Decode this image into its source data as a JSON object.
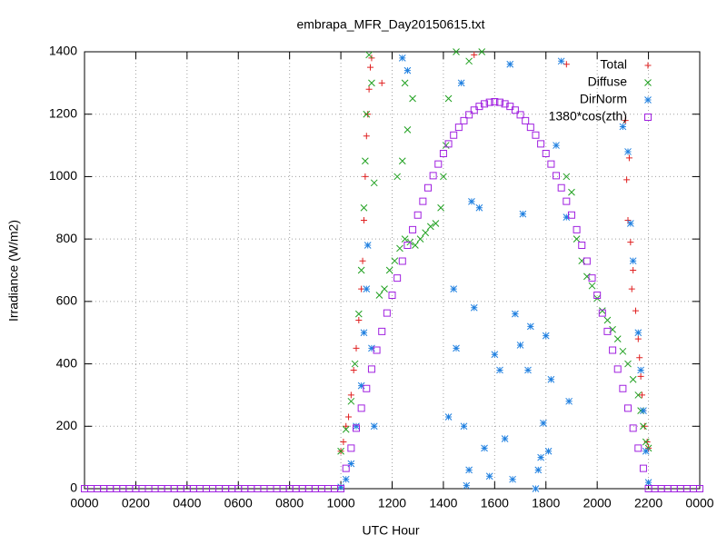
{
  "chart_data": {
    "type": "scatter",
    "title": "embrapa_MFR_Day20150615.txt",
    "x_label": "UTC Hour",
    "y_label": "Irradiance (W/m2)",
    "xlim": [
      0,
      2400
    ],
    "ylim": [
      0,
      1400
    ],
    "xticks": [
      {
        "value": 0,
        "label": "0000"
      },
      {
        "value": 200,
        "label": "0200"
      },
      {
        "value": 400,
        "label": "0400"
      },
      {
        "value": 600,
        "label": "0600"
      },
      {
        "value": 800,
        "label": "0800"
      },
      1000,
      1200,
      1400,
      1600,
      1800,
      2000,
      2200,
      {
        "value": 2400,
        "label": "0000"
      }
    ],
    "yticks": [
      0,
      200,
      400,
      600,
      800,
      1000,
      1200,
      1400
    ],
    "grid": true,
    "legend": "top-right",
    "series": [
      {
        "name": "Total",
        "color": "#e02020",
        "marker": "plus",
        "x": [
          1000,
          1010,
          1020,
          1030,
          1040,
          1050,
          1060,
          1070,
          1080,
          1085,
          1090,
          1095,
          1100,
          1105,
          1110,
          1115,
          1120,
          1160,
          1520,
          1880,
          2110,
          2115,
          2120,
          2125,
          2130,
          2135,
          2140,
          2150,
          2160,
          2165,
          2170,
          2175,
          2180,
          2185,
          2195,
          2200
        ],
        "values": [
          120,
          150,
          200,
          230,
          300,
          380,
          450,
          540,
          640,
          730,
          860,
          1000,
          1130,
          1200,
          1280,
          1350,
          1380,
          1300,
          1390,
          1360,
          1180,
          990,
          860,
          1060,
          790,
          640,
          700,
          570,
          480,
          420,
          360,
          300,
          250,
          200,
          150,
          130
        ]
      },
      {
        "name": "Diffuse",
        "color": "#20a020",
        "marker": "cross",
        "x": [
          1000,
          1020,
          1040,
          1055,
          1070,
          1080,
          1090,
          1095,
          1100,
          1110,
          1120,
          1130,
          1150,
          1170,
          1190,
          1210,
          1230,
          1250,
          1270,
          1290,
          1310,
          1330,
          1350,
          1370,
          1390,
          1400,
          1410,
          1420,
          1250,
          1280,
          1240,
          1260,
          1220,
          1450,
          1550,
          1500,
          1880,
          1900,
          1920,
          1940,
          1960,
          1980,
          2000,
          2020,
          2040,
          2060,
          2080,
          2100,
          2120,
          2140,
          2160,
          2170,
          2180,
          2190,
          2200
        ],
        "values": [
          120,
          190,
          280,
          400,
          560,
          700,
          900,
          1050,
          1200,
          1390,
          1300,
          980,
          620,
          640,
          700,
          730,
          770,
          800,
          790,
          780,
          800,
          820,
          840,
          850,
          900,
          1000,
          1100,
          1250,
          1300,
          1250,
          1050,
          1150,
          1000,
          1400,
          1400,
          1370,
          1000,
          950,
          800,
          730,
          680,
          650,
          610,
          570,
          540,
          510,
          480,
          440,
          400,
          350,
          300,
          250,
          200,
          150,
          130
        ]
      },
      {
        "name": "DirNorm",
        "color": "#2080e0",
        "marker": "star",
        "x": [
          1000,
          1020,
          1040,
          1060,
          1080,
          1090,
          1100,
          1105,
          1120,
          1130,
          1240,
          1260,
          1420,
          1440,
          1450,
          1470,
          1480,
          1490,
          1500,
          1510,
          1520,
          1540,
          1560,
          1580,
          1600,
          1620,
          1640,
          1660,
          1670,
          1680,
          1700,
          1710,
          1730,
          1740,
          1760,
          1770,
          1780,
          1790,
          1800,
          1810,
          1820,
          1840,
          1860,
          1880,
          1890,
          2100,
          2120,
          2130,
          2140,
          2160,
          2170,
          2180,
          2190,
          2200
        ],
        "values": [
          5,
          30,
          80,
          200,
          330,
          500,
          640,
          780,
          450,
          200,
          1380,
          1340,
          230,
          640,
          450,
          1300,
          200,
          10,
          60,
          920,
          580,
          900,
          130,
          40,
          430,
          380,
          160,
          1360,
          30,
          560,
          460,
          880,
          380,
          520,
          0,
          60,
          100,
          210,
          490,
          120,
          350,
          1100,
          1370,
          870,
          280,
          1160,
          1080,
          850,
          730,
          500,
          380,
          250,
          120,
          20
        ]
      },
      {
        "name": "1380*cos(zth)",
        "color": "#a020e0",
        "marker": "square",
        "x": [
          0,
          25,
          50,
          75,
          100,
          125,
          150,
          175,
          200,
          225,
          250,
          275,
          300,
          325,
          350,
          375,
          400,
          425,
          450,
          475,
          500,
          525,
          550,
          575,
          600,
          625,
          650,
          675,
          700,
          725,
          750,
          775,
          800,
          825,
          850,
          875,
          900,
          925,
          950,
          975,
          1000,
          1020,
          1040,
          1060,
          1080,
          1100,
          1120,
          1140,
          1160,
          1180,
          1200,
          1220,
          1240,
          1260,
          1280,
          1300,
          1320,
          1340,
          1360,
          1380,
          1400,
          1420,
          1440,
          1460,
          1480,
          1500,
          1520,
          1540,
          1560,
          1580,
          1600,
          1620,
          1640,
          1660,
          1680,
          1700,
          1720,
          1740,
          1760,
          1780,
          1800,
          1820,
          1840,
          1860,
          1880,
          1900,
          1920,
          1940,
          1960,
          1980,
          2000,
          2020,
          2040,
          2060,
          2080,
          2100,
          2120,
          2140,
          2160,
          2180,
          2200,
          2225,
          2250,
          2275,
          2300,
          2325,
          2350,
          2375,
          2400
        ],
        "values": [
          0,
          0,
          0,
          0,
          0,
          0,
          0,
          0,
          0,
          0,
          0,
          0,
          0,
          0,
          0,
          0,
          0,
          0,
          0,
          0,
          0,
          0,
          0,
          0,
          0,
          0,
          0,
          0,
          0,
          0,
          0,
          0,
          0,
          0,
          0,
          0,
          0,
          0,
          0,
          0,
          0,
          65,
          130,
          194,
          258,
          321,
          383,
          444,
          504,
          563,
          620,
          675,
          729,
          780,
          830,
          877,
          921,
          964,
          1003,
          1040,
          1074,
          1105,
          1133,
          1158,
          1179,
          1198,
          1213,
          1225,
          1233,
          1238,
          1240,
          1238,
          1233,
          1225,
          1213,
          1198,
          1179,
          1158,
          1133,
          1105,
          1074,
          1040,
          1003,
          964,
          921,
          877,
          830,
          780,
          729,
          675,
          620,
          563,
          504,
          444,
          383,
          321,
          258,
          194,
          130,
          65,
          0,
          0,
          0,
          0,
          0,
          0,
          0,
          0,
          0
        ]
      }
    ]
  }
}
